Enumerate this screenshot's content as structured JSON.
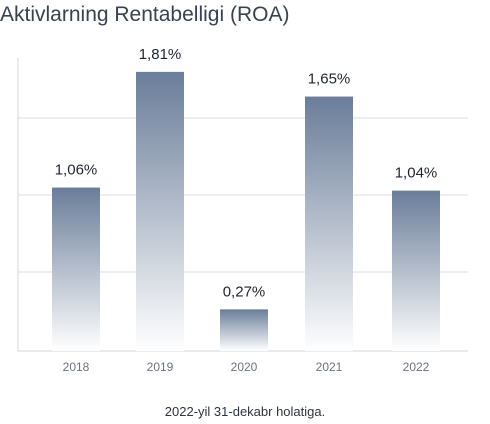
{
  "title": "Aktivlarning Rentabelligi (ROA)",
  "footnote": "2022-yil 31-dekabr holatiga.",
  "colors": {
    "bar_top": "#6a7d99",
    "bar_bottom": "#ffffff",
    "grid": "#d9dde3",
    "axis": "#d0d4da",
    "label": "#1f2430",
    "tick": "#6b7280"
  },
  "chart_data": {
    "type": "bar",
    "title": "Aktivlarning Rentabelligi (ROA)",
    "categories": [
      "2018",
      "2019",
      "2020",
      "2021",
      "2022"
    ],
    "values": [
      1.06,
      1.81,
      0.27,
      1.65,
      1.04
    ],
    "value_labels": [
      "1,06%",
      "1,81%",
      "0,27%",
      "1,65%",
      "1,04%"
    ],
    "xlabel": "",
    "ylabel": "",
    "ylim": [
      0,
      1.9
    ],
    "grid": true,
    "legend": "none"
  }
}
